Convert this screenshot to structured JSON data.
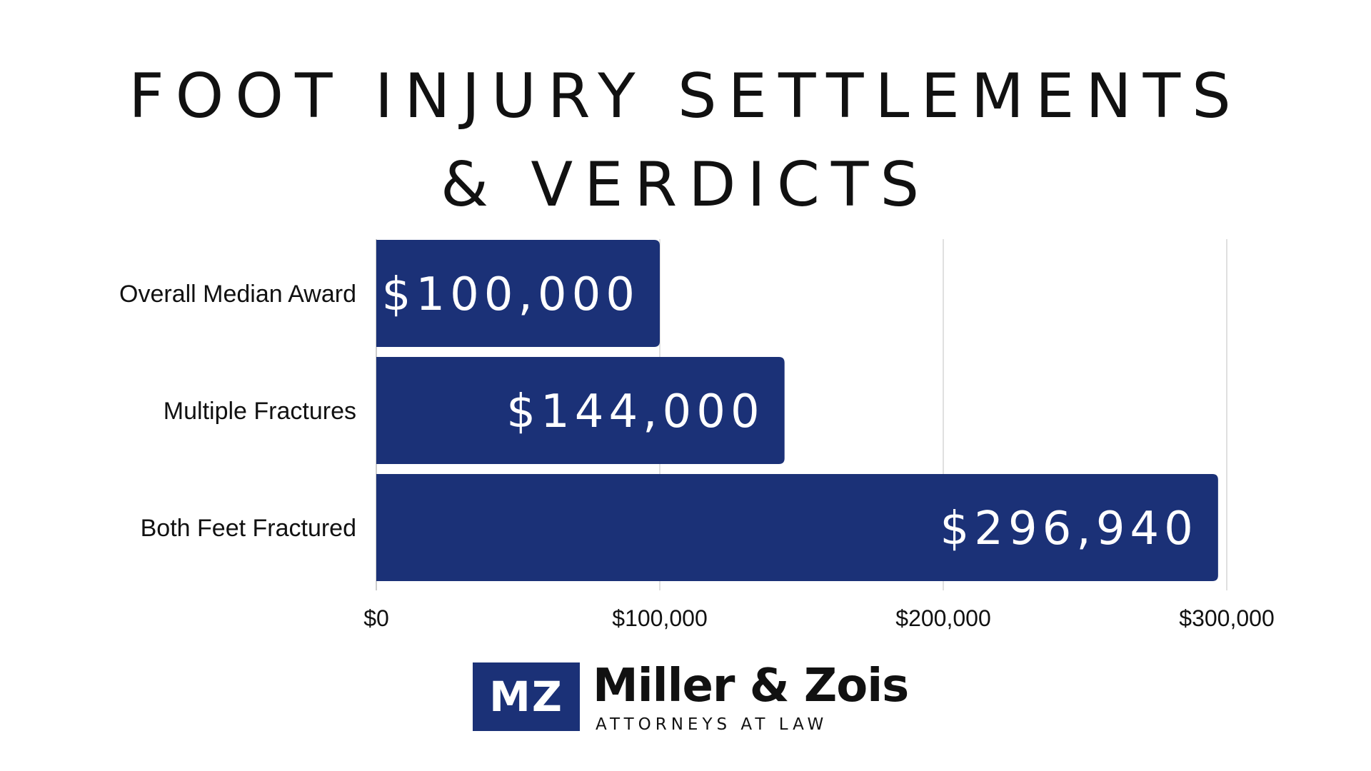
{
  "title_line1": "FOOT INJURY SETTLEMENTS",
  "title_line2": "& VERDICTS",
  "colors": {
    "bar": "#1b3177",
    "grid": "#d6d6d6",
    "axis": "#cccccc",
    "text": "#111111"
  },
  "chart_data": {
    "type": "bar",
    "orientation": "horizontal",
    "categories": [
      "Overall Median Award",
      "Multiple Fractures",
      "Both Feet Fractured"
    ],
    "values": [
      100000,
      144000,
      296940
    ],
    "value_labels": [
      "$100,000",
      "$144,000",
      "$296,940"
    ],
    "xlim": [
      0,
      300000
    ],
    "xticks": [
      0,
      100000,
      200000,
      300000
    ],
    "xtick_labels": [
      "$0",
      "$100,000",
      "$200,000",
      "$300,000"
    ],
    "grid": true,
    "legend": "none"
  },
  "logo": {
    "mark": "MZ",
    "name": "Miller & Zois",
    "tagline": "ATTORNEYS AT LAW"
  }
}
